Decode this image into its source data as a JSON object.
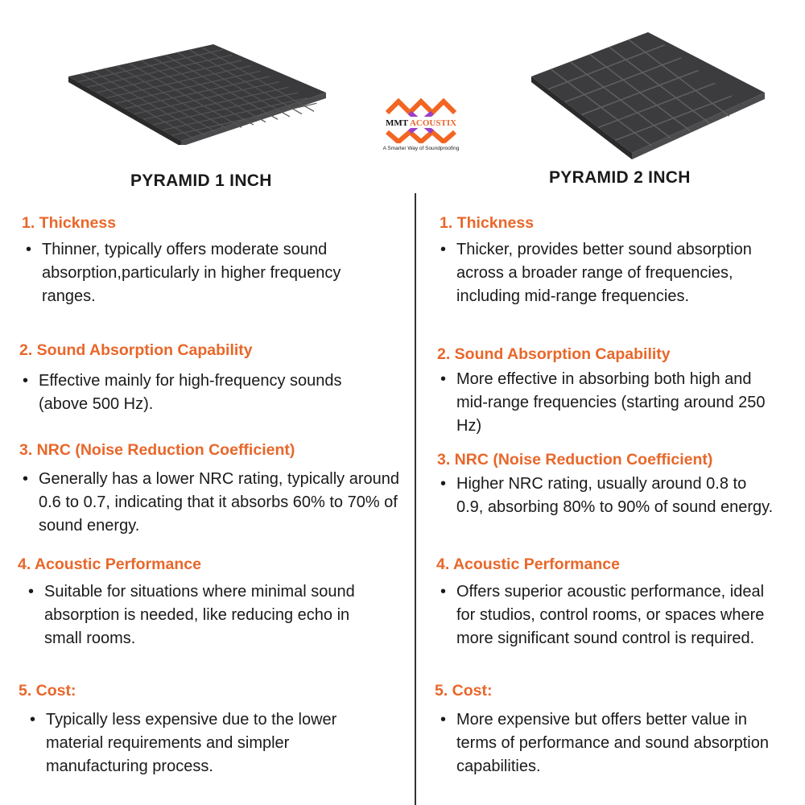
{
  "logo": {
    "brand": "MMT ACOUSTIX",
    "tagline": "A Smarter Way of Soundproofing",
    "colors": [
      "#f26522",
      "#9b3fc6"
    ]
  },
  "left": {
    "title": "PYRAMID 1 INCH",
    "sections": [
      {
        "heading": "1. Thickness",
        "text": "Thinner, typically offers moderate sound absorption,particularly in higher frequency ranges."
      },
      {
        "heading": "2. Sound Absorption Capability",
        "text": "Effective mainly for high-frequency sounds (above 500 Hz)."
      },
      {
        "heading": "3. NRC (Noise Reduction Coefficient)",
        "text": "Generally has a lower NRC rating, typically around 0.6 to 0.7, indicating that it absorbs 60% to 70% of sound energy."
      },
      {
        "heading": "4. Acoustic Performance",
        "text": "Suitable for situations where minimal sound absorption is needed, like reducing echo in small rooms."
      },
      {
        "heading": "5. Cost:",
        "text": "Typically less expensive due to the lower material requirements and simpler manufacturing process."
      }
    ]
  },
  "right": {
    "title": "PYRAMID 2 INCH",
    "sections": [
      {
        "heading": "1. Thickness",
        "text": "Thicker, provides better sound absorption across a broader range of frequencies, including mid-range frequencies."
      },
      {
        "heading": "2. Sound Absorption Capability",
        "text": "More effective in absorbing both high and mid-range frequencies (starting around 250 Hz)"
      },
      {
        "heading": "3. NRC (Noise Reduction Coefficient)",
        "text": "Higher NRC rating, usually around 0.8 to 0.9, absorbing 80% to 90% of sound energy."
      },
      {
        "heading": "4. Acoustic Performance",
        "text": "Offers superior acoustic performance, ideal for studios, control rooms, or spaces where more significant sound control is required."
      },
      {
        "heading": "5. Cost:",
        "text": "More expensive but offers better value in terms of performance and sound absorption capabilities."
      }
    ]
  }
}
